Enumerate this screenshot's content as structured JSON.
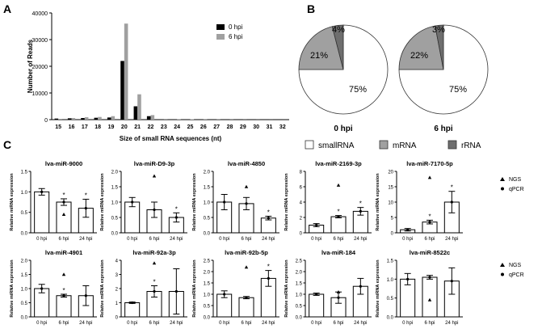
{
  "panels": {
    "a": "A",
    "b": "B",
    "c": "C"
  },
  "colors": {
    "bar_0hpi": "#000000",
    "bar_6hpi": "#a0a0a0",
    "pie_small": "#ffffff",
    "pie_mrna": "#a0a0a0",
    "pie_rrna": "#6e6e6e",
    "qpcr_bar": "#ffffff"
  },
  "chart_data": [
    {
      "id": "A",
      "type": "bar",
      "title": "",
      "xlabel": "Size of small RNA sequences (nt)",
      "ylabel": "Number of Reads",
      "ylim": [
        0,
        40000
      ],
      "yticks": [
        "0",
        "10000",
        "20000",
        "30000",
        "40000"
      ],
      "categories": [
        "15",
        "16",
        "17",
        "18",
        "19",
        "20",
        "21",
        "22",
        "23",
        "24",
        "25",
        "26",
        "27",
        "28",
        "29",
        "30",
        "31",
        "32"
      ],
      "legend": {
        "position": "top-right"
      },
      "series": [
        {
          "name": "0 hpi",
          "values": [
            400,
            500,
            600,
            700,
            800,
            22000,
            5000,
            1300,
            150,
            100,
            80,
            60,
            50,
            40,
            30,
            20,
            10,
            10
          ]
        },
        {
          "name": "6 hpi",
          "values": [
            300,
            600,
            900,
            1000,
            1300,
            36000,
            9500,
            1700,
            300,
            200,
            150,
            100,
            80,
            60,
            40,
            30,
            20,
            10
          ]
        }
      ]
    },
    {
      "id": "B",
      "type": "pie",
      "pies": [
        {
          "title": "0 hpi",
          "slices": [
            {
              "label": "smallRNA",
              "value": 75,
              "text": "75%"
            },
            {
              "label": "mRNA",
              "value": 21,
              "text": "21%"
            },
            {
              "label": "rRNA",
              "value": 4,
              "text": "4%"
            }
          ]
        },
        {
          "title": "6 hpi",
          "slices": [
            {
              "label": "smallRNA",
              "value": 75,
              "text": "75%"
            },
            {
              "label": "mRNA",
              "value": 22,
              "text": "22%"
            },
            {
              "label": "rRNA",
              "value": 3,
              "text": "3%"
            }
          ]
        }
      ],
      "legend": [
        "smallRNA",
        "mRNA",
        "rRNA"
      ]
    },
    {
      "id": "C",
      "type": "bar",
      "ylabel": "Relative miRNA expression",
      "categories": [
        "0 hpi",
        "6 hpi",
        "24 hpi"
      ],
      "legend": [
        "NGS",
        "qPCR"
      ],
      "plots": [
        {
          "title": "lva-miR-9000",
          "ylim": [
            0,
            1.5
          ],
          "yticks": [
            "0.0",
            "0.5",
            "1.0",
            "1.5"
          ],
          "values": [
            1.0,
            0.75,
            0.6
          ],
          "errors": [
            0.08,
            0.08,
            0.22
          ],
          "ngs": [
            null,
            0.45,
            null
          ],
          "star": [
            false,
            true,
            true
          ]
        },
        {
          "title": "lva-miR-D9-3p",
          "ylim": [
            0,
            2.0
          ],
          "yticks": [
            "0.0",
            "0.5",
            "1.0",
            "1.5",
            "2.0"
          ],
          "values": [
            1.0,
            0.75,
            0.5
          ],
          "errors": [
            0.15,
            0.25,
            0.15
          ],
          "ngs": [
            null,
            1.85,
            null
          ],
          "star": [
            false,
            false,
            true
          ]
        },
        {
          "title": "lva-miR-4850",
          "ylim": [
            0,
            2.0
          ],
          "yticks": [
            "0.0",
            "0.5",
            "1.0",
            "1.5",
            "2.0"
          ],
          "values": [
            1.0,
            0.95,
            0.48
          ],
          "errors": [
            0.25,
            0.2,
            0.06
          ],
          "ngs": [
            null,
            1.5,
            null
          ],
          "star": [
            false,
            false,
            true
          ]
        },
        {
          "title": "lva-miR-2169-3p",
          "ylim": [
            0,
            8
          ],
          "yticks": [
            "0",
            "2",
            "4",
            "6",
            "8"
          ],
          "values": [
            1.0,
            2.1,
            2.8
          ],
          "errors": [
            0.2,
            0.15,
            0.5
          ],
          "ngs": [
            null,
            6.2,
            null
          ],
          "star": [
            false,
            true,
            true
          ]
        },
        {
          "title": "lva-miR-7170-5p",
          "ylim": [
            0,
            20
          ],
          "yticks": [
            "0",
            "5",
            "10",
            "15",
            "20"
          ],
          "values": [
            1.0,
            3.5,
            10.0
          ],
          "errors": [
            0.4,
            0.6,
            3.5
          ],
          "ngs": [
            null,
            18,
            null
          ],
          "star": [
            false,
            true,
            true
          ]
        },
        {
          "title": "lva-miR-4901",
          "ylim": [
            0,
            2.0
          ],
          "yticks": [
            "0.0",
            "0.5",
            "1.0",
            "1.5",
            "2.0"
          ],
          "values": [
            1.0,
            0.75,
            0.75
          ],
          "errors": [
            0.15,
            0.05,
            0.35
          ],
          "ngs": [
            null,
            1.5,
            null
          ],
          "star": [
            false,
            true,
            false
          ]
        },
        {
          "title": "lva-miR-92a-3p",
          "ylim": [
            0,
            4
          ],
          "yticks": [
            "0",
            "1",
            "2",
            "3",
            "4"
          ],
          "values": [
            1.0,
            1.8,
            1.8
          ],
          "errors": [
            0.05,
            0.4,
            1.6
          ],
          "ngs": [
            null,
            3.8,
            null
          ],
          "star": [
            false,
            true,
            false
          ]
        },
        {
          "title": "lva-miR-92b-5p",
          "ylim": [
            0,
            2.5
          ],
          "yticks": [
            "0.0",
            "0.5",
            "1.0",
            "1.5",
            "2.0",
            "2.5"
          ],
          "values": [
            1.0,
            0.85,
            1.7
          ],
          "errors": [
            0.15,
            0.05,
            0.35
          ],
          "ngs": [
            null,
            2.2,
            null
          ],
          "star": [
            false,
            false,
            true
          ]
        },
        {
          "title": "lva-miR-184",
          "ylim": [
            0,
            2.5
          ],
          "yticks": [
            "0.0",
            "0.5",
            "1.0",
            "1.5",
            "2.0",
            "2.5"
          ],
          "values": [
            1.0,
            0.85,
            1.35
          ],
          "errors": [
            0.05,
            0.25,
            0.35
          ],
          "ngs": [
            null,
            1.1,
            null
          ],
          "star": [
            false,
            false,
            false
          ]
        },
        {
          "title": "lva-miR-8522c",
          "ylim": [
            0,
            1.5
          ],
          "yticks": [
            "0.0",
            "0.5",
            "1.0",
            "1.5"
          ],
          "values": [
            1.0,
            1.05,
            0.95
          ],
          "errors": [
            0.15,
            0.05,
            0.35
          ],
          "ngs": [
            null,
            0.45,
            null
          ],
          "star": [
            false,
            false,
            false
          ]
        }
      ]
    }
  ]
}
